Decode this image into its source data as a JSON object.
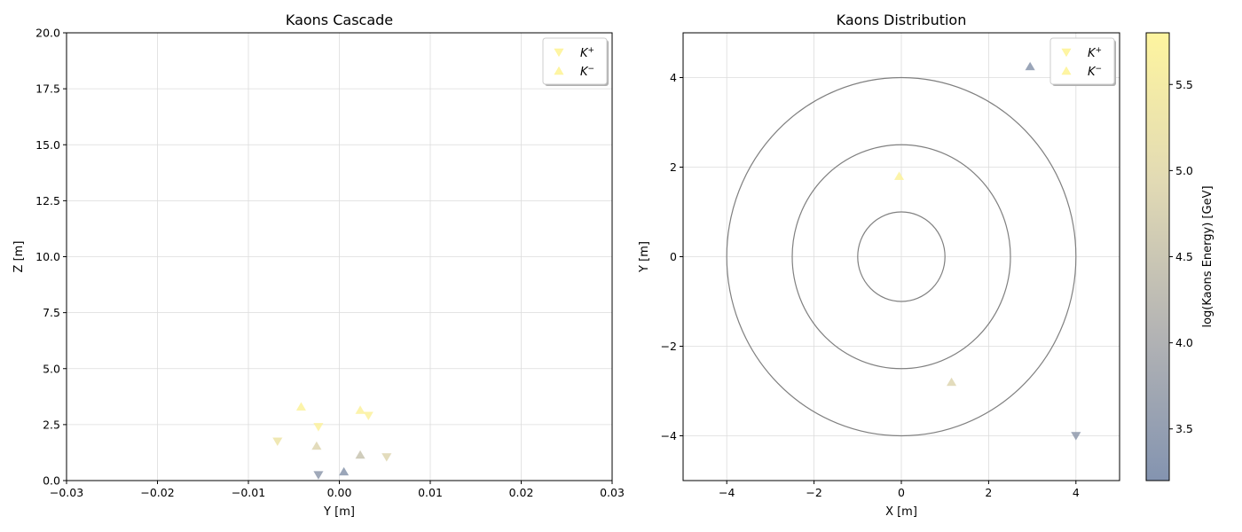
{
  "chart_data": [
    {
      "type": "scatter",
      "title": "Kaons Cascade",
      "xlabel": "Y [m]",
      "ylabel": "Z [m]",
      "xlim": [
        -0.03,
        0.03
      ],
      "ylim": [
        0,
        20
      ],
      "xticks": [
        "−0.03",
        "−0.02",
        "−0.01",
        "0.00",
        "0.01",
        "0.02",
        "0.03"
      ],
      "xtick_values": [
        -0.03,
        -0.02,
        -0.01,
        0.0,
        0.01,
        0.02,
        0.03
      ],
      "yticks": [
        "0.0",
        "2.5",
        "5.0",
        "7.5",
        "10.0",
        "12.5",
        "15.0",
        "17.5",
        "20.0"
      ],
      "ytick_values": [
        0,
        2.5,
        5,
        7.5,
        10,
        12.5,
        15,
        17.5,
        20
      ],
      "grid": true,
      "legend": {
        "placement": "top-right",
        "entries": [
          {
            "label": "K",
            "sup": "+",
            "marker": "triangle-down"
          },
          {
            "label": "K",
            "sup": "−",
            "marker": "triangle-up"
          }
        ]
      },
      "series": [
        {
          "marker": "triangle-down",
          "points": [
            {
              "x": -0.0068,
              "y": 1.75,
              "log_energy": 5.3
            },
            {
              "x": -0.0023,
              "y": 2.4,
              "log_energy": 5.7
            },
            {
              "x": 0.0032,
              "y": 2.9,
              "log_energy": 5.7
            },
            {
              "x": 0.0052,
              "y": 1.05,
              "log_energy": 4.9
            },
            {
              "x": -0.0023,
              "y": 0.25,
              "log_energy": 3.5
            }
          ]
        },
        {
          "marker": "triangle-up",
          "points": [
            {
              "x": -0.0042,
              "y": 3.3,
              "log_energy": 5.75
            },
            {
              "x": 0.0023,
              "y": 3.15,
              "log_energy": 5.7
            },
            {
              "x": -0.0025,
              "y": 1.55,
              "log_energy": 4.9
            },
            {
              "x": 0.0023,
              "y": 1.15,
              "log_energy": 4.5
            },
            {
              "x": 0.0005,
              "y": 0.4,
              "log_energy": 3.4
            }
          ]
        }
      ]
    },
    {
      "type": "scatter",
      "title": "Kaons Distribution",
      "xlabel": "X [m]",
      "ylabel": "Y [m]",
      "xlim": [
        -5,
        5
      ],
      "ylim": [
        -5,
        5
      ],
      "xticks": [
        "−4",
        "−2",
        "0",
        "2",
        "4"
      ],
      "xtick_values": [
        -4,
        -2,
        0,
        2,
        4
      ],
      "yticks": [
        "−4",
        "−2",
        "0",
        "2",
        "4"
      ],
      "ytick_values": [
        -4,
        -2,
        0,
        2,
        4
      ],
      "grid": true,
      "circles": [
        1,
        2.5,
        4
      ],
      "legend": {
        "placement": "top-right",
        "entries": [
          {
            "label": "K",
            "sup": "+",
            "marker": "triangle-down"
          },
          {
            "label": "K",
            "sup": "−",
            "marker": "triangle-up"
          }
        ]
      },
      "series": [
        {
          "marker": "triangle-down",
          "points": [
            {
              "x": 4.0,
              "y": -4.0,
              "log_energy": 3.5
            }
          ]
        },
        {
          "marker": "triangle-up",
          "points": [
            {
              "x": 2.95,
              "y": 4.25,
              "log_energy": 3.4
            },
            {
              "x": -0.05,
              "y": 1.8,
              "log_energy": 5.75
            },
            {
              "x": 1.15,
              "y": -2.8,
              "log_energy": 4.9
            }
          ]
        }
      ]
    }
  ],
  "colorbar": {
    "label": "log(Kaons Energy) [GeV]",
    "range": [
      3.2,
      5.8
    ],
    "ticks": [
      "3.5",
      "4.0",
      "4.5",
      "5.0",
      "5.5"
    ],
    "tick_values": [
      3.5,
      4.0,
      4.5,
      5.0,
      5.5
    ],
    "colormap": [
      "#7d8eac",
      "#b0b0b0",
      "#e0d8b0",
      "#fef49a"
    ]
  }
}
